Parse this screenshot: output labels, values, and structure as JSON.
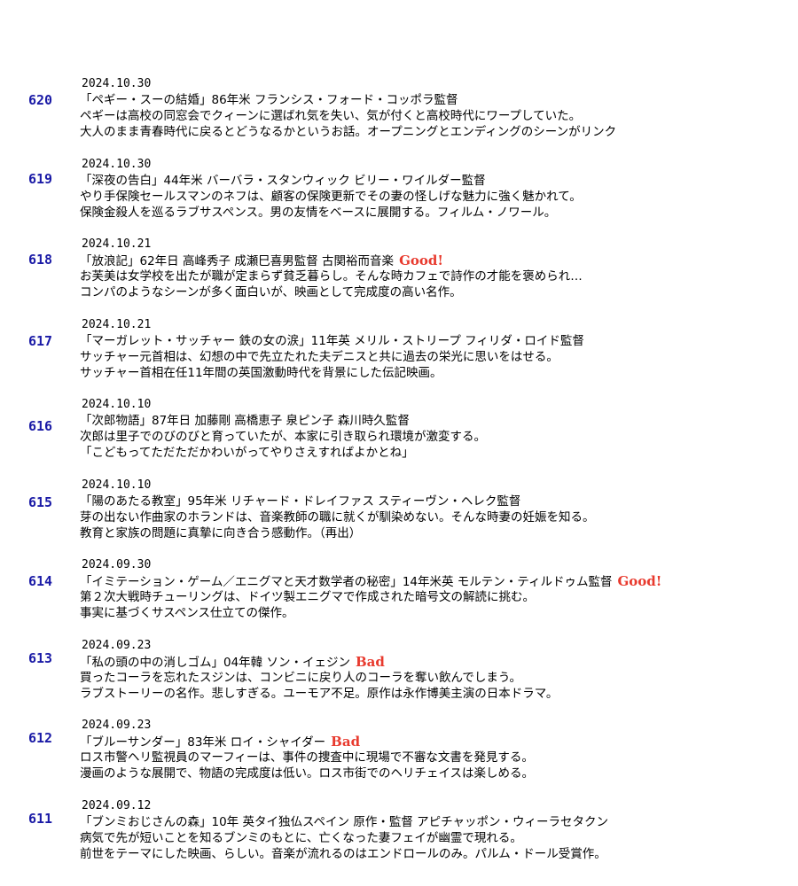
{
  "colors": {
    "entry_number": "#1a1aa6",
    "badge": "#e83a2e",
    "text": "#000000",
    "background": "#ffffff"
  },
  "entries": [
    {
      "number": "620",
      "date": "2024.10.30",
      "title": "「ペギー・スーの結婚」86年米 フランシス・フォード・コッポラ監督",
      "badge": "",
      "desc1": "ペギーは高校の同窓会でクィーンに選ばれ気を失い、気が付くと高校時代にワープしていた。",
      "desc2": "大人のまま青春時代に戻るとどうなるかというお話。オープニングとエンディングのシーンがリンク"
    },
    {
      "number": "619",
      "date": "2024.10.30",
      "title": "「深夜の告白」44年米 バーバラ・スタンウィック ビリー・ワイルダー監督",
      "badge": "",
      "desc1": "やり手保険セールスマンのネフは、顧客の保険更新でその妻の怪しげな魅力に強く魅かれて。",
      "desc2": "保険金殺人を巡るラブサスペンス。男の友情をベースに展開する。フィルム・ノワール。"
    },
    {
      "number": "618",
      "date": "2024.10.21",
      "title": "「放浪記」62年日 高峰秀子 成瀬巳喜男監督 古関裕而音楽",
      "badge": "Good!",
      "desc1": "お芙美は女学校を出たが職が定まらず貧乏暮らし。そんな時カフェで詩作の才能を褒められ…",
      "desc2": "コンパのようなシーンが多く面白いが、映画として完成度の高い名作。"
    },
    {
      "number": "617",
      "date": "2024.10.21",
      "title": "「マーガレット・サッチャー 鉄の女の涙」11年英 メリル・ストリープ フィリダ・ロイド監督",
      "badge": "",
      "desc1": "サッチャー元首相は、幻想の中で先立たれた夫デニスと共に過去の栄光に思いをはせる。",
      "desc2": "サッチャー首相在任11年間の英国激動時代を背景にした伝記映画。"
    },
    {
      "number": "616",
      "date": "2024.10.10",
      "title": "「次郎物語」87年日 加藤剛 高橋恵子 泉ピン子 森川時久監督",
      "badge": "",
      "desc1": "次郎は里子でのびのびと育っていたが、本家に引き取られ環境が激変する。",
      "desc2": "「こどもってただただかわいがってやりさえすればよかとね」"
    },
    {
      "number": "615",
      "date": "2024.10.10",
      "title": "「陽のあたる教室」95年米 リチャード・ドレイファス スティーヴン・ヘレク監督",
      "badge": "",
      "desc1": "芽の出ない作曲家のホランドは、音楽教師の職に就くが馴染めない。そんな時妻の妊娠を知る。",
      "desc2": "教育と家族の問題に真摯に向き合う感動作。（再出）"
    },
    {
      "number": "614",
      "date": "2024.09.30",
      "title": "「イミテーション・ゲーム／エニグマと天才数学者の秘密」14年米英 モルテン・ティルドゥム監督",
      "badge": "Good!",
      "desc1": "第２次大戦時チューリングは、ドイツ製エニグマで作成された暗号文の解読に挑む。",
      "desc2": "事実に基づくサスペンス仕立ての傑作。"
    },
    {
      "number": "613",
      "date": "2024.09.23",
      "title": "「私の頭の中の消しゴム」04年韓 ソン・イェジン",
      "badge": "Bad",
      "desc1": "買ったコーラを忘れたスジンは、コンビニに戻り人のコーラを奪い飲んでしまう。",
      "desc2": "ラブストーリーの名作。悲しすぎる。ユーモア不足。原作は永作博美主演の日本ドラマ。"
    },
    {
      "number": "612",
      "date": "2024.09.23",
      "title": "「ブルーサンダー」83年米 ロイ・シャイダー",
      "badge": "Bad",
      "desc1": "ロス市警ヘリ監視員のマーフィーは、事件の捜査中に現場で不審な文書を発見する。",
      "desc2": "漫画のような展開で、物語の完成度は低い。ロス市街でのヘリチェイスは楽しめる。"
    },
    {
      "number": "611",
      "date": "2024.09.12",
      "title": "「ブンミおじさんの森」10年 英タイ独仏スペイン 原作・監督 アピチャッポン・ウィーラセタクン",
      "badge": "",
      "desc1": "病気で先が短いことを知るブンミのもとに、亡くなった妻フェイが幽霊で現れる。",
      "desc2": "前世をテーマにした映画、らしい。音楽が流れるのはエンドロールのみ。パルム・ドール受賞作。"
    }
  ]
}
